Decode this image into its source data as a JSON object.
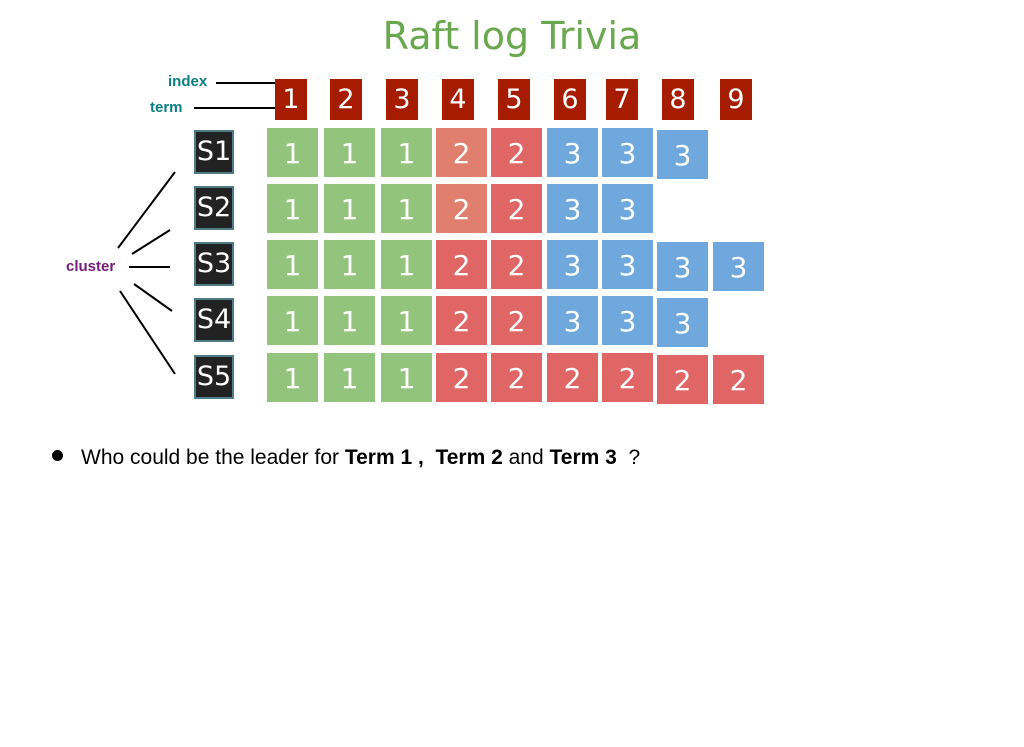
{
  "title": "Raft log Trivia",
  "labels": {
    "index": "index",
    "term": "term",
    "cluster": "cluster"
  },
  "indices": [
    "1",
    "2",
    "3",
    "4",
    "5",
    "6",
    "7",
    "8",
    "9"
  ],
  "colors": {
    "term1": "#93c47d",
    "term2": "#e06666",
    "term2_light": "#e07f6e",
    "term3": "#6fa8dc",
    "index_bg": "#a61c00",
    "title": "#6aa84f",
    "label": "#0b8080",
    "cluster": "#741b7b"
  },
  "servers": [
    {
      "name": "S1",
      "log": [
        1,
        1,
        1,
        2,
        2,
        3,
        3,
        3
      ]
    },
    {
      "name": "S2",
      "log": [
        1,
        1,
        1,
        2,
        2,
        3,
        3
      ]
    },
    {
      "name": "S3",
      "log": [
        1,
        1,
        1,
        2,
        2,
        3,
        3,
        3,
        3
      ]
    },
    {
      "name": "S4",
      "log": [
        1,
        1,
        1,
        2,
        2,
        3,
        3,
        3
      ]
    },
    {
      "name": "S5",
      "log": [
        1,
        1,
        1,
        2,
        2,
        2,
        2,
        2,
        2
      ]
    }
  ],
  "question": {
    "pre": "Who could be the leader for ",
    "t1": "Term 1",
    "sep1": " ,  ",
    "t2": "Term 2",
    "mid": " and ",
    "t3": "Term 3",
    "end": "  ?"
  }
}
